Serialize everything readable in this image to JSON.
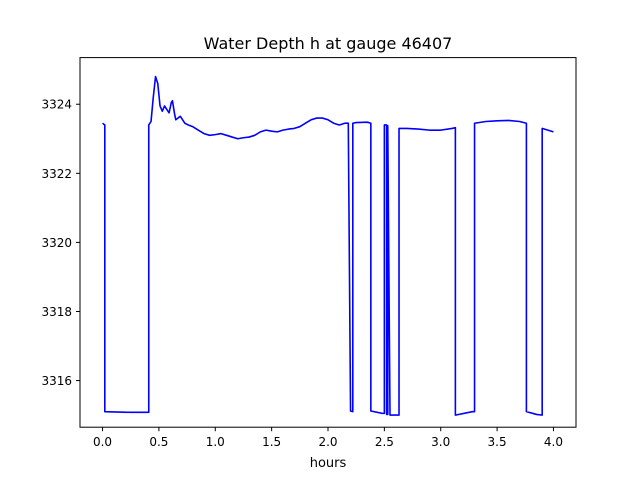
{
  "chart_data": {
    "type": "line",
    "title": "Water Depth h at gauge 46407",
    "xlabel": "hours",
    "ylabel": "",
    "xlim": [
      -0.2,
      4.2
    ],
    "ylim": [
      3314.65,
      3325.35
    ],
    "xticks": [
      0.0,
      0.5,
      1.0,
      1.5,
      2.0,
      2.5,
      3.0,
      3.5,
      4.0
    ],
    "xtick_labels": [
      "0.0",
      "0.5",
      "1.0",
      "1.5",
      "2.0",
      "2.5",
      "3.0",
      "3.5",
      "4.0"
    ],
    "yticks": [
      3316,
      3318,
      3320,
      3322,
      3324
    ],
    "ytick_labels": [
      "3316",
      "3318",
      "3320",
      "3322",
      "3324"
    ],
    "grid": false,
    "line_color": "#0000ff",
    "series": [
      {
        "x": [
          0.0,
          0.02,
          0.02,
          0.25,
          0.4,
          0.41,
          0.41,
          0.43,
          0.45,
          0.47,
          0.49,
          0.51,
          0.53,
          0.55,
          0.57,
          0.59,
          0.61,
          0.62,
          0.64,
          0.65,
          0.67,
          0.69,
          0.71,
          0.73,
          0.76,
          0.8,
          0.85,
          0.9,
          0.95,
          1.0,
          1.05,
          1.1,
          1.15,
          1.2,
          1.25,
          1.3,
          1.35,
          1.4,
          1.45,
          1.5,
          1.55,
          1.6,
          1.65,
          1.7,
          1.75,
          1.8,
          1.85,
          1.9,
          1.95,
          2.0,
          2.05,
          2.1,
          2.15,
          2.18,
          2.2,
          2.2,
          2.22,
          2.22,
          2.25,
          2.35,
          2.38,
          2.38,
          2.48,
          2.5,
          2.5,
          2.52,
          2.52,
          2.53,
          2.53,
          2.55,
          2.63,
          2.63,
          2.7,
          2.8,
          2.9,
          3.0,
          3.1,
          3.13,
          3.13,
          3.28,
          3.3,
          3.3,
          3.4,
          3.5,
          3.6,
          3.7,
          3.76,
          3.76,
          3.85,
          3.9,
          3.9,
          4.0
        ],
        "y": [
          3323.45,
          3323.4,
          3315.1,
          3315.08,
          3315.08,
          3315.08,
          3323.4,
          3323.5,
          3324.2,
          3324.8,
          3324.6,
          3323.95,
          3323.8,
          3323.95,
          3323.85,
          3323.75,
          3324.05,
          3324.1,
          3323.7,
          3323.55,
          3323.6,
          3323.65,
          3323.55,
          3323.45,
          3323.4,
          3323.35,
          3323.25,
          3323.15,
          3323.1,
          3323.12,
          3323.15,
          3323.1,
          3323.05,
          3323.0,
          3323.03,
          3323.05,
          3323.1,
          3323.2,
          3323.25,
          3323.22,
          3323.2,
          3323.25,
          3323.28,
          3323.3,
          3323.35,
          3323.45,
          3323.55,
          3323.6,
          3323.6,
          3323.55,
          3323.45,
          3323.4,
          3323.45,
          3323.45,
          3315.12,
          3315.12,
          3315.1,
          3323.45,
          3323.47,
          3323.48,
          3323.45,
          3315.12,
          3315.05,
          3315.05,
          3323.4,
          3323.4,
          3315.02,
          3315.02,
          3323.38,
          3315.0,
          3315.0,
          3323.3,
          3323.3,
          3323.28,
          3323.25,
          3323.25,
          3323.3,
          3323.32,
          3315.0,
          3315.1,
          3315.1,
          3323.45,
          3323.5,
          3323.52,
          3323.53,
          3323.5,
          3323.45,
          3315.1,
          3315.02,
          3315.0,
          3323.3,
          3323.2
        ]
      }
    ]
  }
}
